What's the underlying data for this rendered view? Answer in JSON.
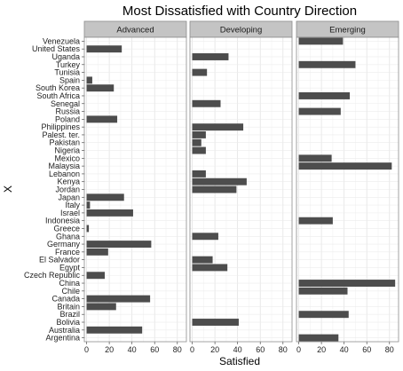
{
  "chart_data": {
    "type": "bar",
    "orientation": "horizontal",
    "title": "Most Dissatisfied with Country Direction",
    "xlabel": "Satisfied",
    "ylabel": "X",
    "xlim": [
      -2,
      88
    ],
    "xticks": [
      0,
      20,
      40,
      60,
      80
    ],
    "grid": true,
    "facets": [
      "Advanced",
      "Developing",
      "Emerging"
    ],
    "categories": [
      "Argentina",
      "Australia",
      "Bolivia",
      "Brazil",
      "Britain",
      "Canada",
      "Chile",
      "China",
      "Czech Republic",
      "Egypt",
      "El Salvador",
      "France",
      "Germany",
      "Ghana",
      "Greece",
      "Indonesia",
      "Israel",
      "Italy",
      "Japan",
      "Jordan",
      "Kenya",
      "Lebanon",
      "Malaysia",
      "Mexico",
      "Nigeria",
      "Pakistan",
      "Palest. ter.",
      "Philippines",
      "Poland",
      "Russia",
      "Senegal",
      "South Africa",
      "South Korea",
      "Spain",
      "Tunisia",
      "Turkey",
      "Uganda",
      "United States",
      "Venezuela"
    ],
    "series": [
      {
        "name": "Advanced",
        "values": [
          null,
          49,
          null,
          null,
          26,
          56,
          null,
          null,
          16,
          null,
          null,
          19,
          57,
          null,
          2,
          null,
          41,
          3,
          33,
          null,
          null,
          null,
          null,
          null,
          null,
          null,
          null,
          null,
          27,
          null,
          null,
          null,
          24,
          5,
          null,
          null,
          null,
          31,
          null
        ]
      },
      {
        "name": "Developing",
        "values": [
          null,
          null,
          41,
          null,
          null,
          null,
          null,
          null,
          null,
          31,
          18,
          null,
          null,
          23,
          null,
          null,
          null,
          null,
          null,
          39,
          48,
          12,
          null,
          null,
          12,
          8,
          12,
          45,
          null,
          null,
          25,
          null,
          null,
          null,
          13,
          null,
          32,
          null,
          null
        ]
      },
      {
        "name": "Emerging",
        "values": [
          35,
          null,
          null,
          44,
          null,
          null,
          43,
          85,
          null,
          null,
          null,
          null,
          null,
          null,
          null,
          30,
          null,
          null,
          null,
          null,
          null,
          null,
          82,
          29,
          null,
          null,
          null,
          null,
          null,
          37,
          null,
          45,
          null,
          null,
          null,
          50,
          null,
          null,
          39
        ]
      }
    ]
  }
}
